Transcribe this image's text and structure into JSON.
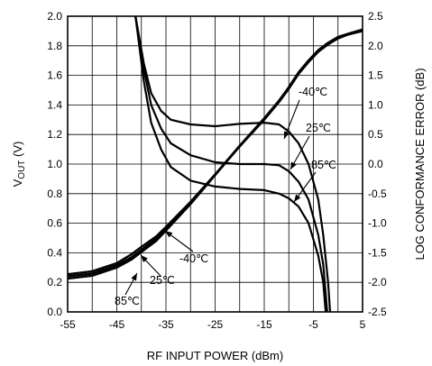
{
  "chart_data": {
    "type": "line",
    "xlabel": "RF INPUT POWER (dBm)",
    "ylabel_left": "VOUT (V)",
    "ylabel_left_main": "V",
    "ylabel_left_sub": "OUT",
    "ylabel_left_unit": " (V)",
    "ylabel_right": "LOG CONFORMANCE ERROR (dB)",
    "xlim": [
      -55,
      5
    ],
    "ylim_left": [
      0,
      2.0
    ],
    "ylim_right": [
      -2.5,
      2.5
    ],
    "grid": true,
    "x_ticks": [
      "-55",
      "-45",
      "-35",
      "-25",
      "-15",
      "-5",
      "5"
    ],
    "y_left_ticks": [
      "0.0",
      "0.2",
      "0.4",
      "0.6",
      "0.8",
      "1.0",
      "1.2",
      "1.4",
      "1.6",
      "1.8",
      "2.0"
    ],
    "y_right_ticks": [
      "-2.5",
      "-2.0",
      "-1.5",
      "-1.0",
      "-0.5",
      "0.0",
      "0.5",
      "1.0",
      "1.5",
      "2.0",
      "2.5"
    ],
    "series": [
      {
        "name": "-40℃",
        "axis": "left",
        "values": [
          [
            -55,
            0.255
          ],
          [
            -50,
            0.275
          ],
          [
            -45,
            0.33
          ],
          [
            -42,
            0.39
          ],
          [
            -40,
            0.44
          ],
          [
            -37,
            0.51
          ],
          [
            -35,
            0.575
          ],
          [
            -30,
            0.745
          ],
          [
            -25,
            0.93
          ],
          [
            -20,
            1.12
          ],
          [
            -15,
            1.3
          ],
          [
            -12,
            1.42
          ],
          [
            -10,
            1.51
          ],
          [
            -8,
            1.61
          ],
          [
            -6,
            1.69
          ],
          [
            -4,
            1.76
          ],
          [
            -2,
            1.81
          ],
          [
            0,
            1.85
          ],
          [
            2,
            1.875
          ],
          [
            5,
            1.9
          ]
        ]
      },
      {
        "name": "25℃",
        "axis": "left",
        "values": [
          [
            -55,
            0.24
          ],
          [
            -50,
            0.26
          ],
          [
            -45,
            0.315
          ],
          [
            -42,
            0.37
          ],
          [
            -40,
            0.42
          ],
          [
            -37,
            0.495
          ],
          [
            -35,
            0.565
          ],
          [
            -30,
            0.74
          ],
          [
            -25,
            0.93
          ],
          [
            -20,
            1.125
          ],
          [
            -15,
            1.31
          ],
          [
            -12,
            1.43
          ],
          [
            -10,
            1.52
          ],
          [
            -8,
            1.62
          ],
          [
            -6,
            1.7
          ],
          [
            -4,
            1.77
          ],
          [
            -2,
            1.82
          ],
          [
            0,
            1.86
          ],
          [
            2,
            1.88
          ],
          [
            5,
            1.91
          ]
        ]
      },
      {
        "name": "85℃",
        "axis": "left",
        "values": [
          [
            -55,
            0.225
          ],
          [
            -50,
            0.245
          ],
          [
            -45,
            0.3
          ],
          [
            -42,
            0.355
          ],
          [
            -40,
            0.405
          ],
          [
            -37,
            0.48
          ],
          [
            -35,
            0.55
          ],
          [
            -30,
            0.73
          ],
          [
            -25,
            0.925
          ],
          [
            -20,
            1.12
          ],
          [
            -15,
            1.305
          ],
          [
            -12,
            1.425
          ],
          [
            -10,
            1.52
          ],
          [
            -8,
            1.62
          ],
          [
            -6,
            1.7
          ],
          [
            -4,
            1.77
          ],
          [
            -2,
            1.82
          ],
          [
            0,
            1.86
          ],
          [
            2,
            1.88
          ],
          [
            5,
            1.91
          ]
        ]
      },
      {
        "name": "-40℃",
        "axis": "right",
        "values": [
          [
            -41.2,
            2.5
          ],
          [
            -39.5,
            1.7
          ],
          [
            -38,
            1.2
          ],
          [
            -36,
            0.9
          ],
          [
            -34,
            0.75
          ],
          [
            -30,
            0.67
          ],
          [
            -25,
            0.64
          ],
          [
            -20,
            0.68
          ],
          [
            -15,
            0.7
          ],
          [
            -12,
            0.67
          ],
          [
            -10,
            0.55
          ],
          [
            -8,
            0.35
          ],
          [
            -6,
            0.0
          ],
          [
            -4,
            -0.6
          ],
          [
            -3,
            -1.2
          ],
          [
            -2,
            -2.0
          ],
          [
            -1.6,
            -2.5
          ]
        ]
      },
      {
        "name": "25℃",
        "axis": "right",
        "values": [
          [
            -41.2,
            2.5
          ],
          [
            -39.5,
            1.6
          ],
          [
            -38,
            1.0
          ],
          [
            -36,
            0.6
          ],
          [
            -34,
            0.35
          ],
          [
            -30,
            0.15
          ],
          [
            -25,
            0.03
          ],
          [
            -20,
            0.0
          ],
          [
            -15,
            0.0
          ],
          [
            -12,
            -0.02
          ],
          [
            -10,
            -0.12
          ],
          [
            -8,
            -0.3
          ],
          [
            -6,
            -0.6
          ],
          [
            -4,
            -1.2
          ],
          [
            -3,
            -1.7
          ],
          [
            -2.2,
            -2.5
          ]
        ]
      },
      {
        "name": "85℃",
        "axis": "right",
        "values": [
          [
            -41.2,
            2.5
          ],
          [
            -39.5,
            1.4
          ],
          [
            -38,
            0.7
          ],
          [
            -36,
            0.25
          ],
          [
            -34,
            -0.05
          ],
          [
            -30,
            -0.28
          ],
          [
            -25,
            -0.38
          ],
          [
            -20,
            -0.42
          ],
          [
            -15,
            -0.44
          ],
          [
            -12,
            -0.5
          ],
          [
            -10,
            -0.58
          ],
          [
            -8,
            -0.72
          ],
          [
            -6,
            -1.0
          ],
          [
            -4,
            -1.55
          ],
          [
            -3,
            -2.0
          ],
          [
            -2.5,
            -2.5
          ]
        ]
      }
    ],
    "annotations": [
      "-40℃",
      "25℃",
      "85℃",
      "-40℃",
      "25℃",
      "85℃"
    ]
  }
}
